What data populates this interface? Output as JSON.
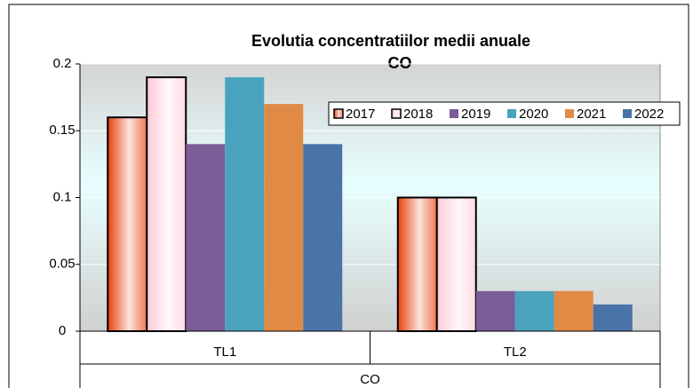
{
  "chart_data": {
    "type": "bar",
    "title": [
      "Evolutia concentratiilor medii anuale",
      "CO"
    ],
    "categories": [
      "TL1",
      "TL2"
    ],
    "group_label": "CO",
    "series": [
      {
        "name": "2017",
        "color": "#e8400c",
        "gradient": true,
        "outline": "#000000",
        "values": [
          0.16,
          0.1
        ]
      },
      {
        "name": "2018",
        "color": "#ffc8d8",
        "gradient": true,
        "outline": "#000000",
        "values": [
          0.19,
          0.1
        ]
      },
      {
        "name": "2019",
        "color": "#7a5c96",
        "values": [
          0.14,
          0.03
        ]
      },
      {
        "name": "2020",
        "color": "#4aa3bd",
        "values": [
          0.19,
          0.03
        ]
      },
      {
        "name": "2021",
        "color": "#e08a45",
        "values": [
          0.17,
          0.03
        ]
      },
      {
        "name": "2022",
        "color": "#4a74a8",
        "values": [
          0.14,
          0.02
        ]
      }
    ],
    "ylim": [
      0,
      0.2
    ],
    "yticks": [
      0,
      0.05,
      0.1,
      0.15,
      0.2
    ],
    "grid": true,
    "legend": "top-right"
  }
}
